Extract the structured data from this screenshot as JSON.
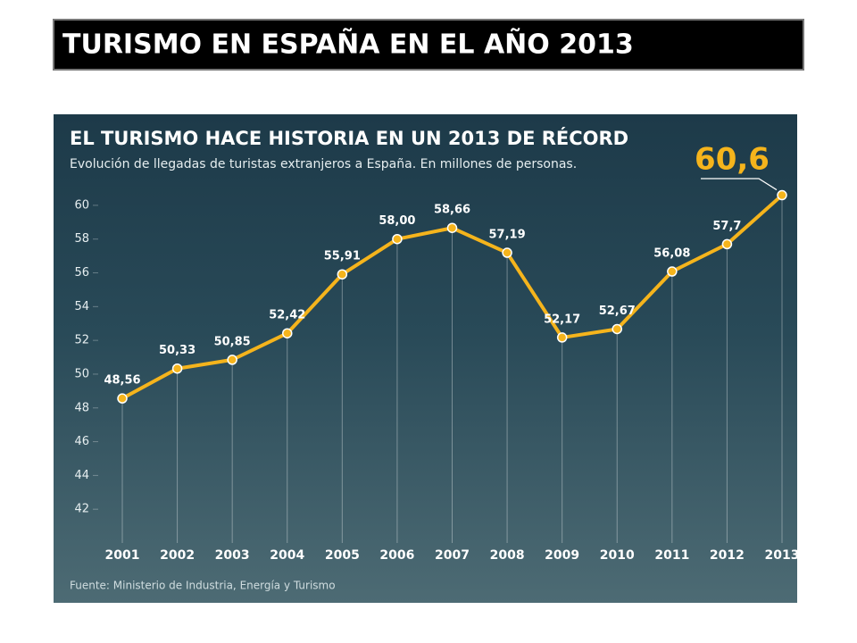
{
  "slide_title": "TURISMO EN ESPAÑA EN EL AÑO 2013",
  "chart_data": {
    "type": "line",
    "title": "EL TURISMO HACE HISTORIA EN UN 2013 DE RÉCORD",
    "subtitle": "Evolución de llegadas de turistas extranjeros a España. En millones de personas.",
    "source": "Fuente: Ministerio de Industria, Energía y Turismo",
    "categories": [
      "2001",
      "2002",
      "2003",
      "2004",
      "2005",
      "2006",
      "2007",
      "2008",
      "2009",
      "2010",
      "2011",
      "2012",
      "2013"
    ],
    "values": [
      48.56,
      50.33,
      50.85,
      52.42,
      55.91,
      58.0,
      58.66,
      57.19,
      52.17,
      52.67,
      56.08,
      57.7,
      60.6
    ],
    "value_labels": [
      "48,56",
      "50,33",
      "50,85",
      "52,42",
      "55,91",
      "58,00",
      "58,66",
      "57,19",
      "52,17",
      "52,67",
      "56,08",
      "57,7",
      "60,6"
    ],
    "color": "#f5b41c",
    "ylim": [
      40,
      61
    ],
    "yticks": [
      42,
      44,
      46,
      48,
      50,
      52,
      54,
      56,
      58,
      60
    ]
  }
}
